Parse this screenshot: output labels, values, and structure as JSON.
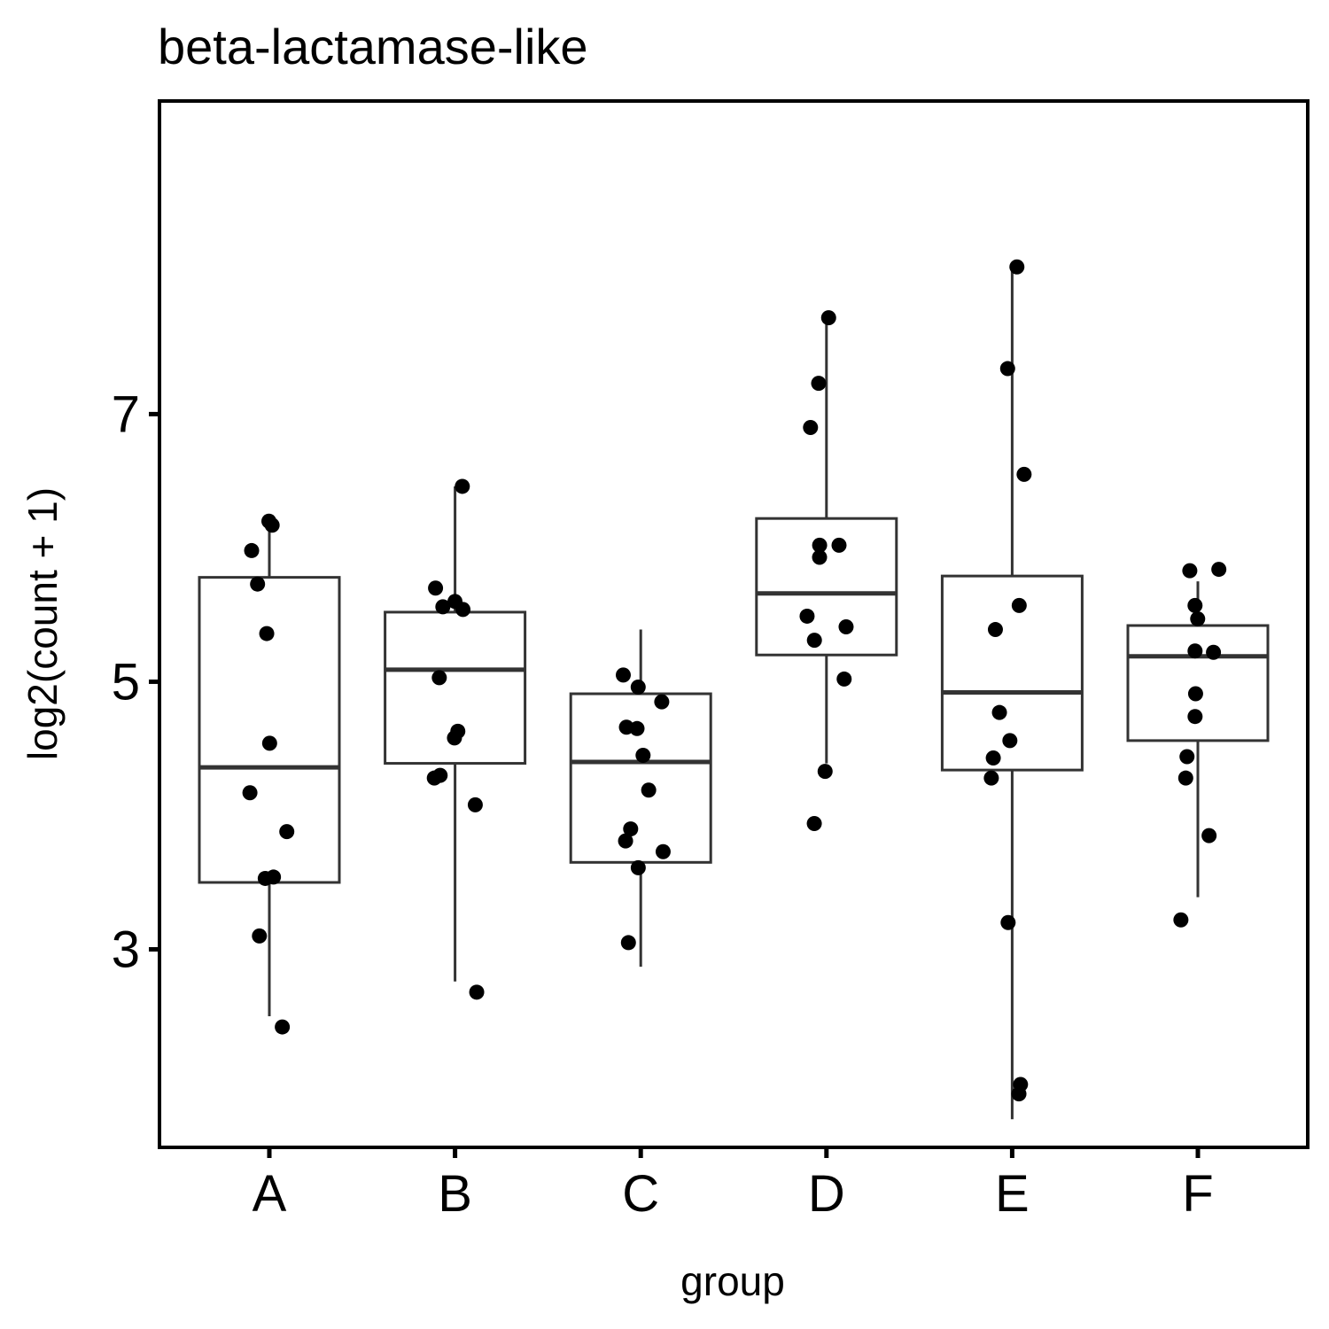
{
  "chart_data": {
    "type": "box",
    "title": "beta-lactamase-like",
    "xlabel": "group",
    "ylabel": "log2(count + 1)",
    "ylim": [
      1.52,
      9.34
    ],
    "yticks": [
      3,
      5,
      7
    ],
    "grid": false,
    "legend": "none",
    "categories": [
      "A",
      "B",
      "C",
      "D",
      "E",
      "F"
    ],
    "boxes": [
      {
        "group": "A",
        "whisker_low": 2.5,
        "q1": 3.5,
        "median": 4.36,
        "q3": 5.78,
        "whisker_high": 6.18
      },
      {
        "group": "B",
        "whisker_low": 2.76,
        "q1": 4.39,
        "median": 5.09,
        "q3": 5.52,
        "whisker_high": 6.46
      },
      {
        "group": "C",
        "whisker_low": 2.87,
        "q1": 3.65,
        "median": 4.4,
        "q3": 4.91,
        "whisker_high": 5.39
      },
      {
        "group": "D",
        "whisker_low": 4.39,
        "q1": 5.2,
        "median": 5.66,
        "q3": 6.22,
        "whisker_high": 7.71
      },
      {
        "group": "E",
        "whisker_low": 1.73,
        "q1": 4.34,
        "median": 4.92,
        "q3": 5.79,
        "whisker_high": 8.09
      },
      {
        "group": "F",
        "whisker_low": 3.39,
        "q1": 4.56,
        "median": 5.19,
        "q3": 5.42,
        "whisker_high": 5.75
      }
    ],
    "points": [
      {
        "group": "A",
        "y": [
          6.2,
          6.17,
          5.98,
          5.73,
          5.36,
          4.54,
          4.17,
          3.88,
          3.54,
          3.53,
          3.1,
          2.42
        ]
      },
      {
        "group": "B",
        "y": [
          6.46,
          5.7,
          5.6,
          5.56,
          5.54,
          5.03,
          4.63,
          4.58,
          4.3,
          4.28,
          4.08,
          2.68
        ]
      },
      {
        "group": "C",
        "y": [
          5.05,
          4.96,
          4.85,
          4.66,
          4.65,
          4.45,
          4.19,
          3.9,
          3.81,
          3.73,
          3.61,
          3.05
        ]
      },
      {
        "group": "D",
        "y": [
          7.72,
          7.23,
          6.9,
          6.02,
          6.02,
          5.93,
          5.49,
          5.41,
          5.31,
          5.02,
          4.33,
          3.94
        ]
      },
      {
        "group": "E",
        "y": [
          8.1,
          7.34,
          6.55,
          5.57,
          5.39,
          4.77,
          4.56,
          4.43,
          4.28,
          3.2,
          1.99,
          1.92
        ]
      },
      {
        "group": "F",
        "y": [
          5.84,
          5.83,
          5.57,
          5.47,
          5.23,
          5.22,
          4.91,
          4.74,
          4.44,
          4.28,
          3.85,
          3.22
        ]
      }
    ]
  }
}
